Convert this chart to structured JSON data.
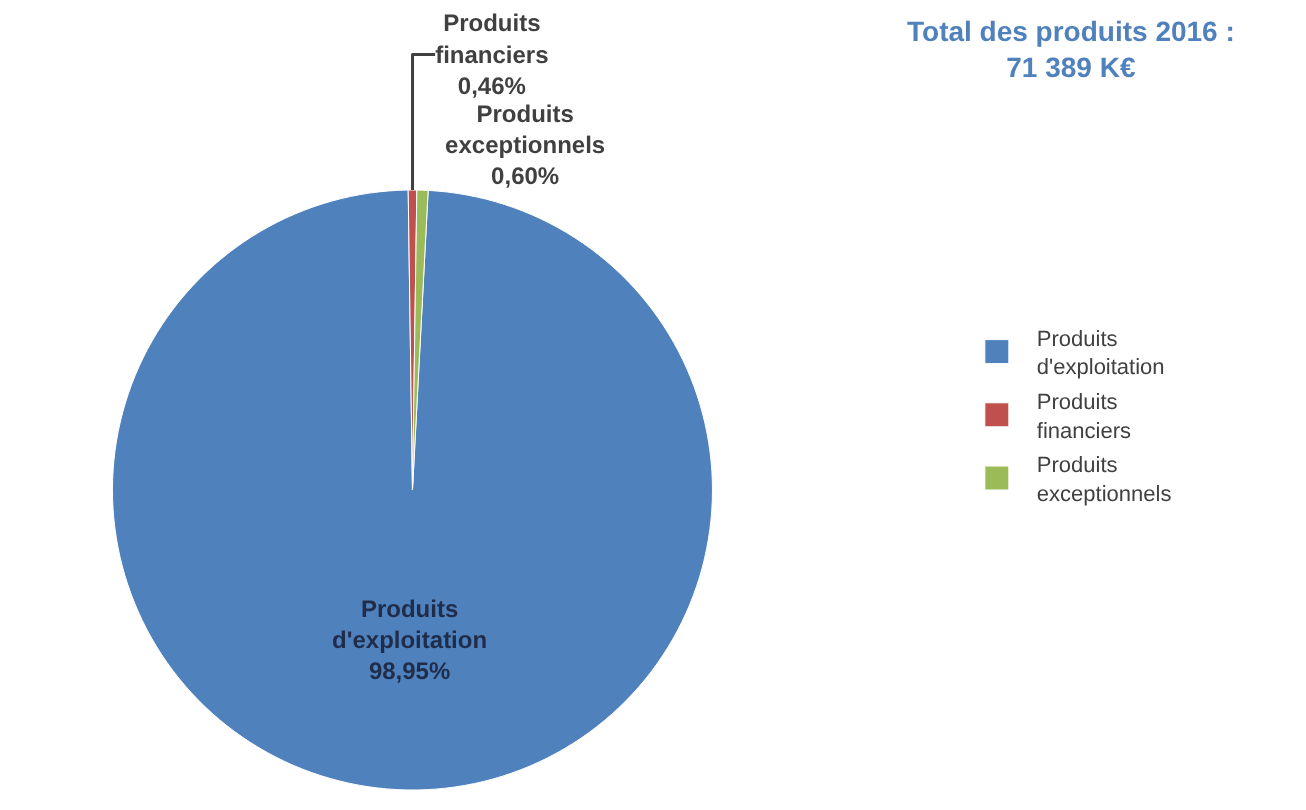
{
  "chart_data": {
    "type": "pie",
    "title": "Total des produits 2016 :\n71 389 K€",
    "categories": [
      "Produits d'exploitation",
      "Produits financiers",
      "Produits exceptionnels"
    ],
    "values": [
      98.95,
      0.46,
      0.6
    ],
    "colors": [
      "#4f81bd",
      "#c0504d",
      "#9bbb59"
    ],
    "value_labels": [
      "98,95%",
      "0,46%",
      "0,60%"
    ],
    "legend": "right"
  }
}
